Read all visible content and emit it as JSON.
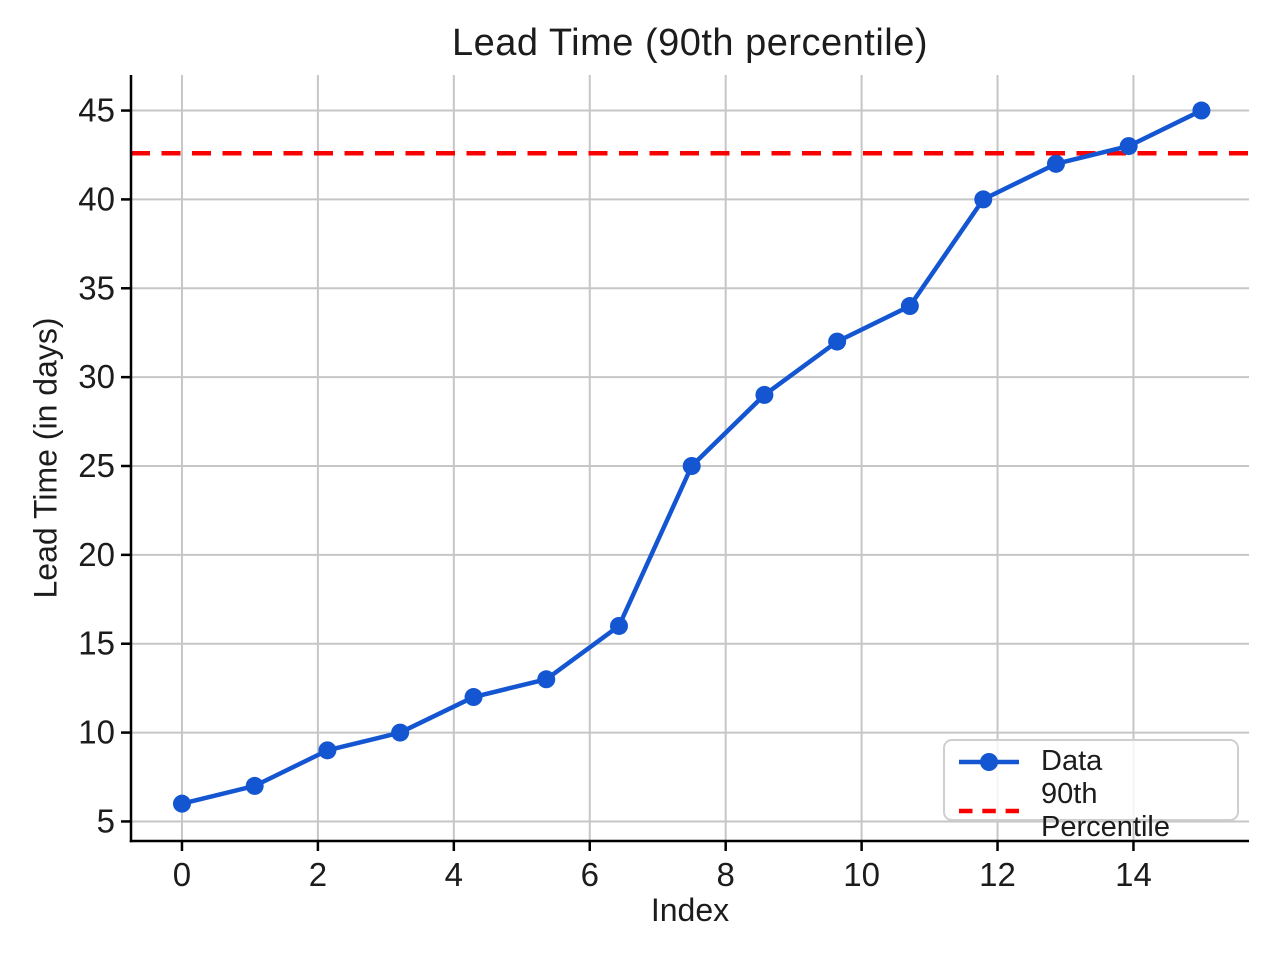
{
  "chart_data": {
    "type": "line",
    "title": "Lead Time (90th percentile)",
    "xlabel": "Index",
    "ylabel": "Lead Time (in days)",
    "x": [
      0,
      1.07,
      2.14,
      3.21,
      4.29,
      5.36,
      6.43,
      7.5,
      8.57,
      9.64,
      10.71,
      11.79,
      12.86,
      13.93,
      15
    ],
    "series": [
      {
        "name": "Data",
        "values": [
          6,
          7,
          9,
          10,
          12,
          13,
          16,
          25,
          29,
          32,
          34,
          40,
          42,
          43,
          45
        ],
        "color": "#1456d2",
        "marker": "circle"
      }
    ],
    "reference_line": {
      "name": "90th Percentile",
      "value": 42.6,
      "color": "#fb0000",
      "style": "dashed"
    },
    "xticks": [
      0,
      2,
      4,
      6,
      8,
      10,
      12,
      14
    ],
    "yticks": [
      5,
      10,
      15,
      20,
      25,
      30,
      35,
      40,
      45
    ],
    "xlim": [
      -0.75,
      15.7
    ],
    "ylim": [
      3.9,
      47
    ],
    "grid": true,
    "grid_color": "#c6c6c6",
    "axis_color": "#000000",
    "text_color": "#1c1c1c",
    "legend_position": "lower right"
  }
}
